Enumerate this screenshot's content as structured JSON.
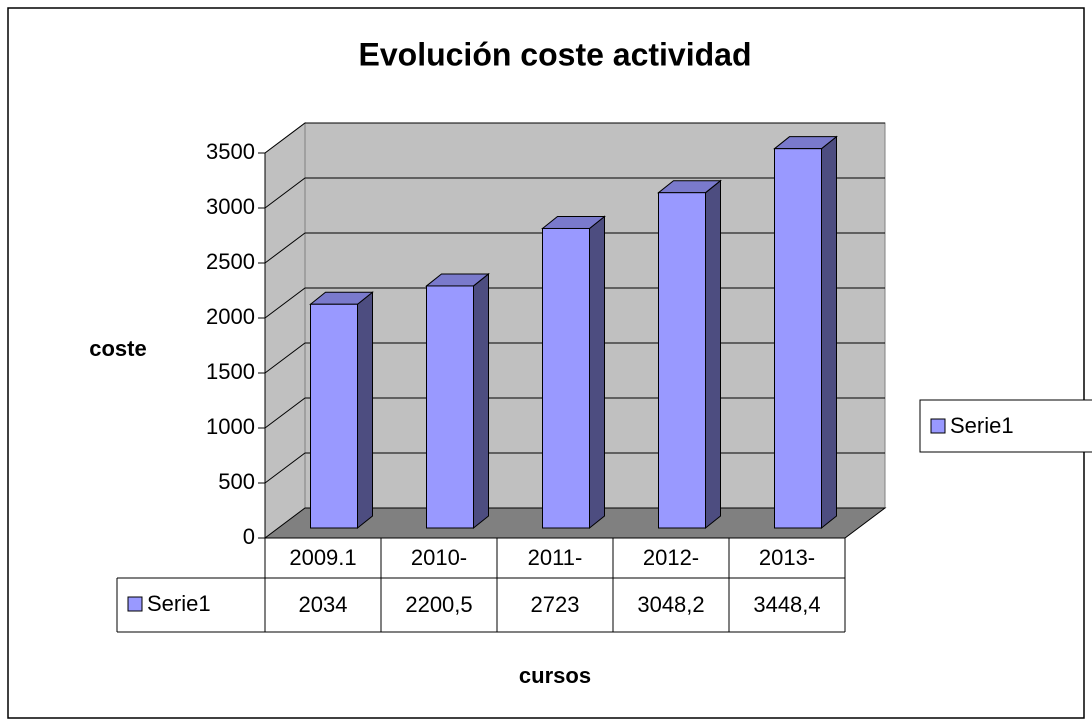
{
  "chart_data": {
    "type": "bar3d",
    "title": "Evolución coste actividad",
    "y_label": "coste",
    "x_label": "cursos",
    "categories": [
      "2009.1",
      "2010-",
      "2011-",
      "2012-",
      "2013-"
    ],
    "series": [
      {
        "name": "Serie1",
        "color": "#9999ff",
        "values": [
          2034,
          2200.5,
          2723,
          3048.2,
          3448.4
        ],
        "value_labels": [
          "2034",
          "2200,5",
          "2723",
          "3048,2",
          "3448,4"
        ]
      }
    ],
    "ylim": [
      0,
      3500
    ],
    "yticks": [
      0,
      500,
      1000,
      1500,
      2000,
      2500,
      3000,
      3500
    ],
    "grid": true,
    "legend": "right",
    "data_table": true
  }
}
